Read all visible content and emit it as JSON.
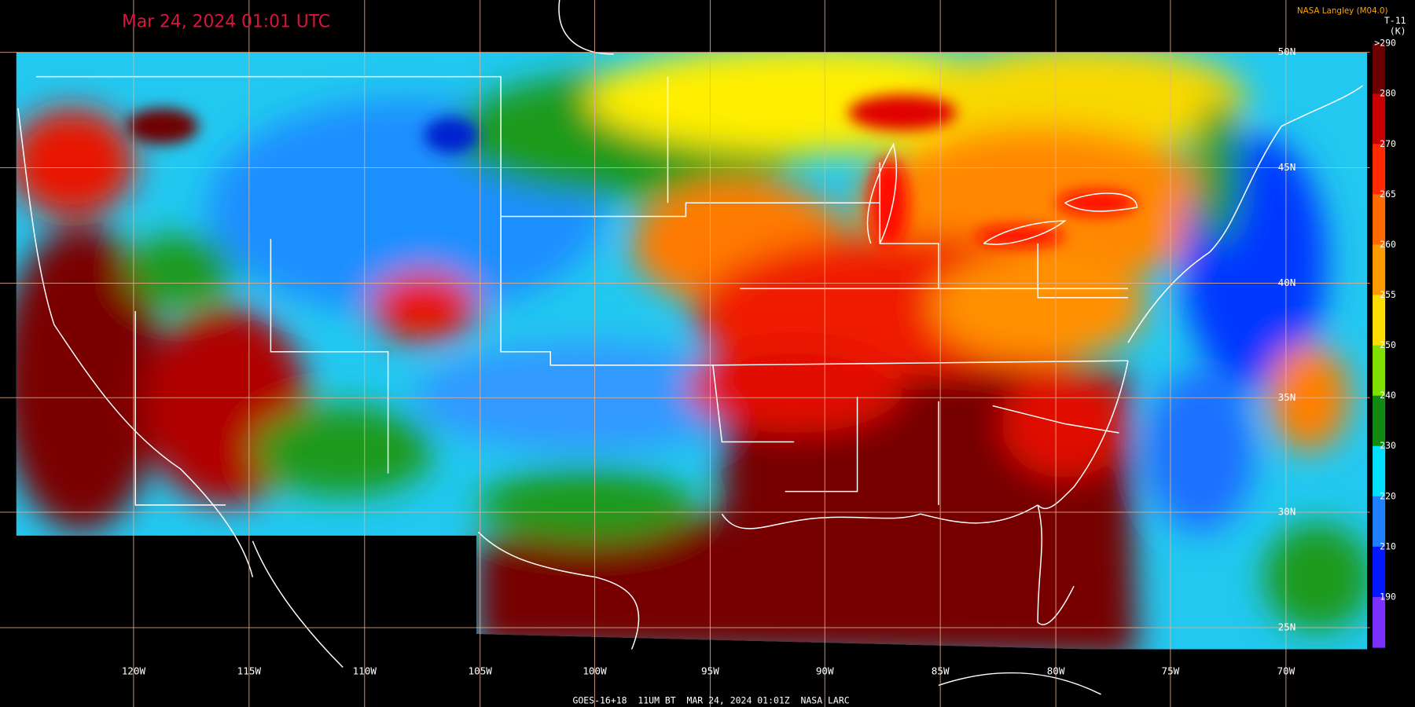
{
  "timestamp": "Mar 24, 2024 01:01 UTC",
  "credit": "NASA Langley (M04.0)",
  "product": "T-11",
  "unit": "(K)",
  "colorbar": {
    "labels": [
      ">290",
      "280",
      "270",
      "265",
      "260",
      "255",
      "250",
      "240",
      "230",
      "220",
      "210",
      "190"
    ]
  },
  "longitude_labels": [
    "120W",
    "115W",
    "110W",
    "105W",
    "100W",
    "95W",
    "90W",
    "85W",
    "80W",
    "75W",
    "70W"
  ],
  "latitude_labels": [
    "50N",
    "45N",
    "40N",
    "35N",
    "30N",
    "25N"
  ],
  "footer": "GOES-16+18  11UM BT  MAR 24, 2024 01:01Z  NASA LARC"
}
